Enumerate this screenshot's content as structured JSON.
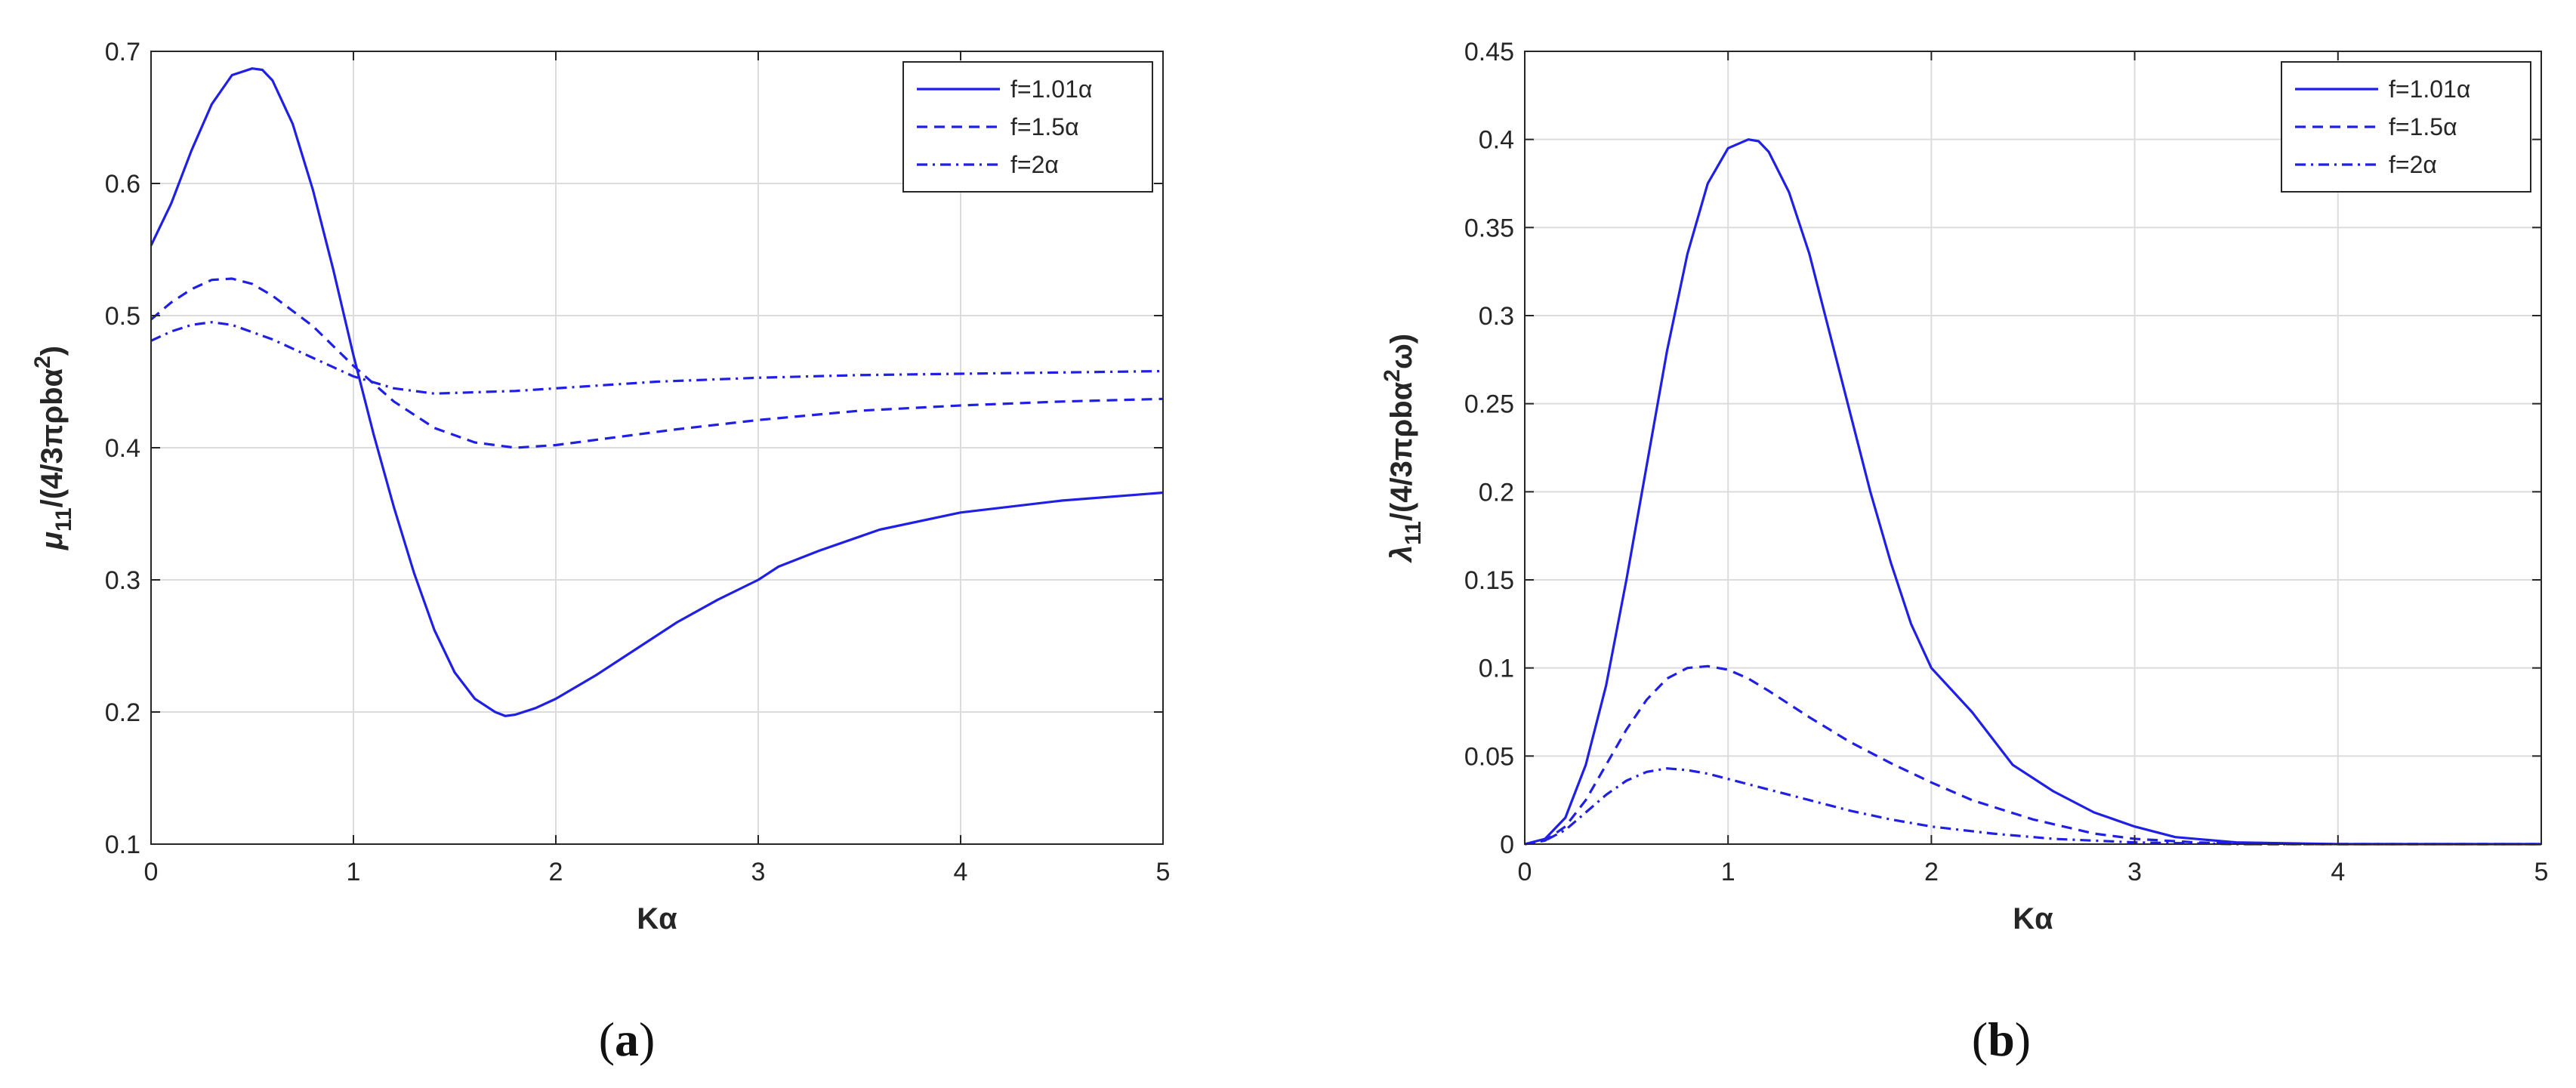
{
  "colors": {
    "line": "#1f1fe6",
    "axis": "#262626",
    "grid": "#dcdcdc",
    "background": "#ffffff"
  },
  "chart_data": [
    {
      "id": "a",
      "type": "line",
      "caption_letter": "a",
      "title": "",
      "xlabel": "Kα",
      "ylabel_main": "μ",
      "ylabel_sub": "11",
      "ylabel_rest": "/(4/3πρbα",
      "ylabel_sup": "2",
      "ylabel_tail": ")",
      "xlim": [
        0,
        5
      ],
      "ylim": [
        0.1,
        0.7
      ],
      "xticks": [
        0,
        1,
        2,
        3,
        4,
        5
      ],
      "xtick_labels": [
        "0",
        "1",
        "2",
        "3",
        "4",
        "5"
      ],
      "yticks": [
        0.1,
        0.2,
        0.3,
        0.4,
        0.5,
        0.6,
        0.7
      ],
      "ytick_labels": [
        "0.1",
        "0.2",
        "0.3",
        "0.4",
        "0.5",
        "0.6",
        "0.7"
      ],
      "grid": true,
      "legend_position": "top-right",
      "series": [
        {
          "name": "f=1.01α",
          "style": "solid",
          "x": [
            0,
            0.1,
            0.2,
            0.3,
            0.4,
            0.5,
            0.55,
            0.6,
            0.7,
            0.8,
            0.9,
            1.0,
            1.1,
            1.2,
            1.3,
            1.4,
            1.5,
            1.6,
            1.7,
            1.75,
            1.8,
            1.9,
            2.0,
            2.2,
            2.4,
            2.6,
            2.8,
            3.0,
            3.1,
            3.3,
            3.6,
            4.0,
            4.5,
            5.0
          ],
          "y": [
            0.553,
            0.585,
            0.625,
            0.66,
            0.682,
            0.687,
            0.686,
            0.678,
            0.645,
            0.595,
            0.535,
            0.47,
            0.41,
            0.355,
            0.305,
            0.262,
            0.23,
            0.21,
            0.2,
            0.197,
            0.198,
            0.203,
            0.21,
            0.228,
            0.248,
            0.268,
            0.285,
            0.3,
            0.31,
            0.322,
            0.338,
            0.351,
            0.36,
            0.366
          ]
        },
        {
          "name": "f=1.5α",
          "style": "dashed",
          "x": [
            0,
            0.1,
            0.2,
            0.3,
            0.4,
            0.5,
            0.6,
            0.8,
            1.0,
            1.2,
            1.4,
            1.6,
            1.8,
            2.0,
            2.3,
            2.6,
            3.0,
            3.5,
            4.0,
            4.5,
            5.0
          ],
          "y": [
            0.497,
            0.51,
            0.52,
            0.527,
            0.528,
            0.524,
            0.515,
            0.492,
            0.462,
            0.435,
            0.415,
            0.404,
            0.4,
            0.402,
            0.408,
            0.414,
            0.421,
            0.428,
            0.432,
            0.435,
            0.437
          ]
        },
        {
          "name": "f=2α",
          "style": "dashdot",
          "x": [
            0,
            0.1,
            0.2,
            0.3,
            0.4,
            0.6,
            0.8,
            1.0,
            1.2,
            1.4,
            1.6,
            1.8,
            2.0,
            2.5,
            3.0,
            3.5,
            4.0,
            4.5,
            5.0
          ],
          "y": [
            0.481,
            0.488,
            0.493,
            0.495,
            0.493,
            0.482,
            0.468,
            0.454,
            0.445,
            0.441,
            0.442,
            0.443,
            0.445,
            0.45,
            0.453,
            0.455,
            0.456,
            0.457,
            0.458
          ]
        }
      ]
    },
    {
      "id": "b",
      "type": "line",
      "caption_letter": "b",
      "title": "",
      "xlabel": "Kα",
      "ylabel_main": "λ",
      "ylabel_sub": "11",
      "ylabel_rest": "/(4/3πρbα",
      "ylabel_sup": "2",
      "ylabel_tail": "ω)",
      "xlim": [
        0,
        5
      ],
      "ylim": [
        0,
        0.45
      ],
      "xticks": [
        0,
        1,
        2,
        3,
        4,
        5
      ],
      "xtick_labels": [
        "0",
        "1",
        "2",
        "3",
        "4",
        "5"
      ],
      "yticks": [
        0,
        0.05,
        0.1,
        0.15,
        0.2,
        0.25,
        0.3,
        0.35,
        0.4,
        0.45
      ],
      "ytick_labels": [
        "0",
        "0.05",
        "0.1",
        "0.15",
        "0.2",
        "0.25",
        "0.3",
        "0.35",
        "0.4",
        "0.45"
      ],
      "grid": true,
      "legend_position": "top-right",
      "series": [
        {
          "name": "f=1.01α",
          "style": "solid",
          "x": [
            0,
            0.1,
            0.2,
            0.3,
            0.4,
            0.5,
            0.6,
            0.7,
            0.8,
            0.9,
            1.0,
            1.1,
            1.15,
            1.2,
            1.3,
            1.4,
            1.5,
            1.6,
            1.7,
            1.8,
            1.9,
            2.0,
            2.2,
            2.4,
            2.6,
            2.8,
            3.0,
            3.2,
            3.5,
            4.0,
            4.5,
            5.0
          ],
          "y": [
            0,
            0.003,
            0.015,
            0.045,
            0.09,
            0.15,
            0.215,
            0.28,
            0.335,
            0.375,
            0.395,
            0.4,
            0.399,
            0.393,
            0.37,
            0.335,
            0.29,
            0.245,
            0.2,
            0.16,
            0.125,
            0.1,
            0.075,
            0.045,
            0.03,
            0.018,
            0.01,
            0.004,
            0.001,
            0,
            0,
            0
          ]
        },
        {
          "name": "f=1.5α",
          "style": "dashed",
          "x": [
            0,
            0.1,
            0.2,
            0.3,
            0.4,
            0.5,
            0.6,
            0.7,
            0.8,
            0.9,
            1.0,
            1.1,
            1.2,
            1.4,
            1.6,
            1.8,
            2.0,
            2.2,
            2.5,
            2.8,
            3.0,
            3.3,
            3.6,
            4.0,
            5.0
          ],
          "y": [
            0,
            0.002,
            0.01,
            0.025,
            0.045,
            0.065,
            0.082,
            0.094,
            0.1,
            0.101,
            0.099,
            0.094,
            0.087,
            0.072,
            0.058,
            0.046,
            0.035,
            0.025,
            0.014,
            0.006,
            0.003,
            0.001,
            0,
            0,
            0
          ]
        },
        {
          "name": "f=2α",
          "style": "dashdot",
          "x": [
            0,
            0.1,
            0.2,
            0.3,
            0.4,
            0.5,
            0.6,
            0.7,
            0.8,
            0.9,
            1.0,
            1.2,
            1.4,
            1.6,
            1.8,
            2.0,
            2.3,
            2.6,
            3.0,
            3.5,
            4.0,
            5.0
          ],
          "y": [
            0,
            0.002,
            0.008,
            0.018,
            0.028,
            0.036,
            0.041,
            0.043,
            0.042,
            0.04,
            0.037,
            0.031,
            0.025,
            0.019,
            0.014,
            0.01,
            0.006,
            0.003,
            0.001,
            0,
            0,
            0
          ]
        }
      ]
    }
  ]
}
